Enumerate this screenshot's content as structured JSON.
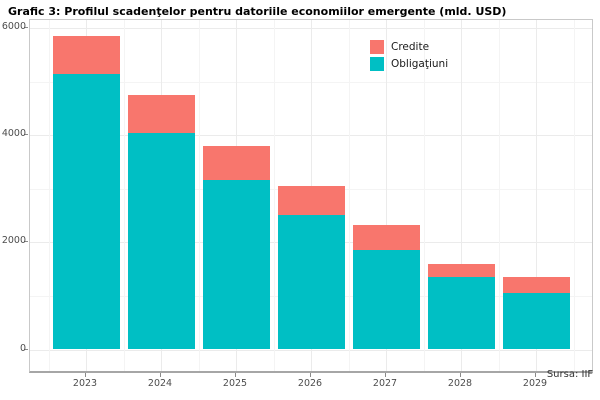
{
  "title": "Grafic 3: Profilul scadenţelor pentru datoriile economiilor emergente (mld. USD)",
  "source_note": "Sursa: IIF",
  "legend": {
    "items": [
      {
        "label": "Credite",
        "color": "#F8766D"
      },
      {
        "label": "Obligaţiuni",
        "color": "#00BFC4"
      }
    ]
  },
  "colors": {
    "credite": "#F8766D",
    "obligatiuni": "#00BFC4",
    "grid_major": "#ebebeb",
    "grid_minor": "#f4f4f4",
    "panel_border": "#c9c9c9",
    "axis_text": "#4d4d4d"
  },
  "chart_data": {
    "type": "bar",
    "stacked": true,
    "title": "Grafic 3: Profilul scadenţelor pentru datoriile economiilor emergente (mld. USD)",
    "categories": [
      "2023",
      "2024",
      "2025",
      "2026",
      "2027",
      "2028",
      "2029"
    ],
    "series": [
      {
        "name": "Obligaţiuni",
        "color": "#00BFC4",
        "values": [
          5150,
          4040,
          3170,
          2510,
          1860,
          1360,
          1060
        ]
      },
      {
        "name": "Credite",
        "color": "#F8766D",
        "values": [
          700,
          710,
          630,
          540,
          460,
          240,
          300
        ]
      }
    ],
    "totals": [
      5850,
      4750,
      3800,
      3050,
      2320,
      1600,
      1360
    ],
    "xlabel": "",
    "ylabel": "",
    "ylim": [
      0,
      6000
    ],
    "yticks": [
      0,
      2000,
      4000,
      6000
    ],
    "yticks_minor": [
      1000,
      3000,
      5000
    ],
    "grid": true,
    "legend_position": "inside-top-right",
    "annotation": "Sursa: IIF"
  }
}
